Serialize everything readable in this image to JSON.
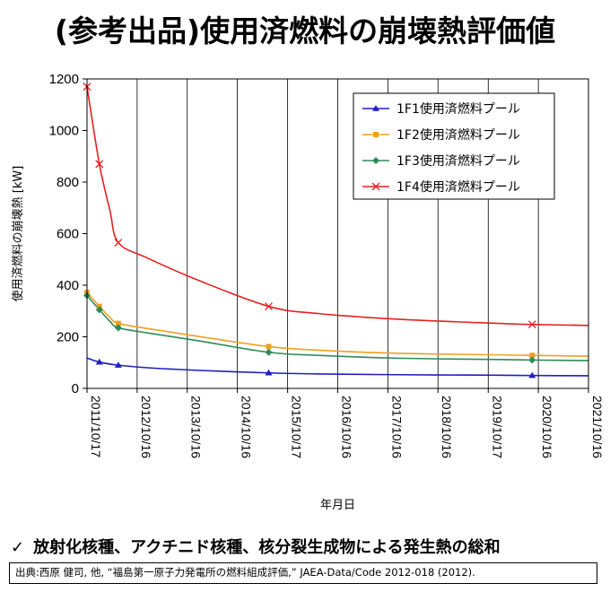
{
  "title": "(参考出品)使用済燃料の崩壊熱評価値",
  "summary": {
    "check_icon": "check-icon",
    "text": "放射化核種、アクチニド核種、核分裂生成物による発生熱の総和"
  },
  "citation": {
    "label": "出典:",
    "text": "西原 健司, 他, “福島第一原子力発電所の燃料組成評価,” JAEA-Data/Code 2012-018  (2012)."
  },
  "chart_data": {
    "type": "line",
    "title": "",
    "xlabel": "年月日",
    "ylabel": "使用済燃料の崩壊熱 [kW]",
    "ylim": [
      0,
      1200
    ],
    "yticks": [
      0,
      200,
      400,
      600,
      800,
      1000,
      1200
    ],
    "xlim": [
      "2011-10-17",
      "2021-10-16"
    ],
    "xtick_labels": [
      "2011/10/17",
      "2012/10/16",
      "2013/10/16",
      "2014/10/16",
      "2015/10/17",
      "2016/10/16",
      "2017/10/16",
      "2018/10/16",
      "2019/10/17",
      "2020/10/16",
      "2021/10/16"
    ],
    "grid": "vertical",
    "legend_position": "top-right",
    "series": [
      {
        "name": "1F1使用済燃料プール",
        "color": "#1f1fbf",
        "marker": "triangle",
        "x": [
          "2011-10-17",
          "2012-01-15",
          "2012-06-01",
          "2013-01-01",
          "2014-01-01",
          "2015-06-01",
          "2016-06-01",
          "2018-01-01",
          "2020-01-01",
          "2020-09-01",
          "2021-10-16"
        ],
        "values": [
          118,
          102,
          90,
          80,
          70,
          60,
          56,
          53,
          51,
          50,
          49
        ]
      },
      {
        "name": "1F2使用済燃料プール",
        "color": "#f0a020",
        "marker": "square",
        "x": [
          "2011-10-17",
          "2012-01-15",
          "2012-04-01",
          "2012-06-01",
          "2013-01-01",
          "2014-01-01",
          "2015-06-01",
          "2016-06-01",
          "2018-01-01",
          "2020-01-01",
          "2020-09-01",
          "2021-10-16"
        ],
        "values": [
          372,
          318,
          275,
          252,
          232,
          202,
          162,
          148,
          136,
          130,
          128,
          125
        ]
      },
      {
        "name": "1F3使用済燃料プール",
        "color": "#2e8b57",
        "marker": "diamond",
        "x": [
          "2011-10-17",
          "2012-01-15",
          "2012-04-01",
          "2012-06-01",
          "2013-01-01",
          "2014-01-01",
          "2015-06-01",
          "2016-06-01",
          "2018-01-01",
          "2020-01-01",
          "2020-09-01",
          "2021-10-16"
        ],
        "values": [
          360,
          305,
          260,
          235,
          215,
          185,
          140,
          128,
          117,
          112,
          110,
          108
        ]
      },
      {
        "name": "1F4使用済燃料プール",
        "color": "#e62020",
        "marker": "x",
        "x": [
          "2011-10-17",
          "2012-01-15",
          "2012-04-01",
          "2012-06-01",
          "2013-01-01",
          "2014-01-01",
          "2015-06-01",
          "2016-06-01",
          "2018-01-01",
          "2020-01-01",
          "2020-09-01",
          "2021-10-16"
        ],
        "values": [
          1170,
          870,
          690,
          565,
          505,
          420,
          318,
          290,
          268,
          252,
          248,
          244
        ]
      }
    ],
    "marker_points": {
      "1F1使用済燃料プール": [
        "2012-01-15",
        "2012-06-01",
        "2015-06-01",
        "2020-09-01"
      ],
      "1F2使用済燃料プール": [
        "2011-10-17",
        "2012-01-15",
        "2012-06-01",
        "2015-06-01",
        "2020-09-01"
      ],
      "1F3使用済燃料プール": [
        "2011-10-17",
        "2012-01-15",
        "2012-06-01",
        "2015-06-01",
        "2020-09-01"
      ],
      "1F4使用済燃料プール": [
        "2011-10-17",
        "2012-01-15",
        "2012-06-01",
        "2015-06-01",
        "2020-09-01"
      ]
    }
  }
}
